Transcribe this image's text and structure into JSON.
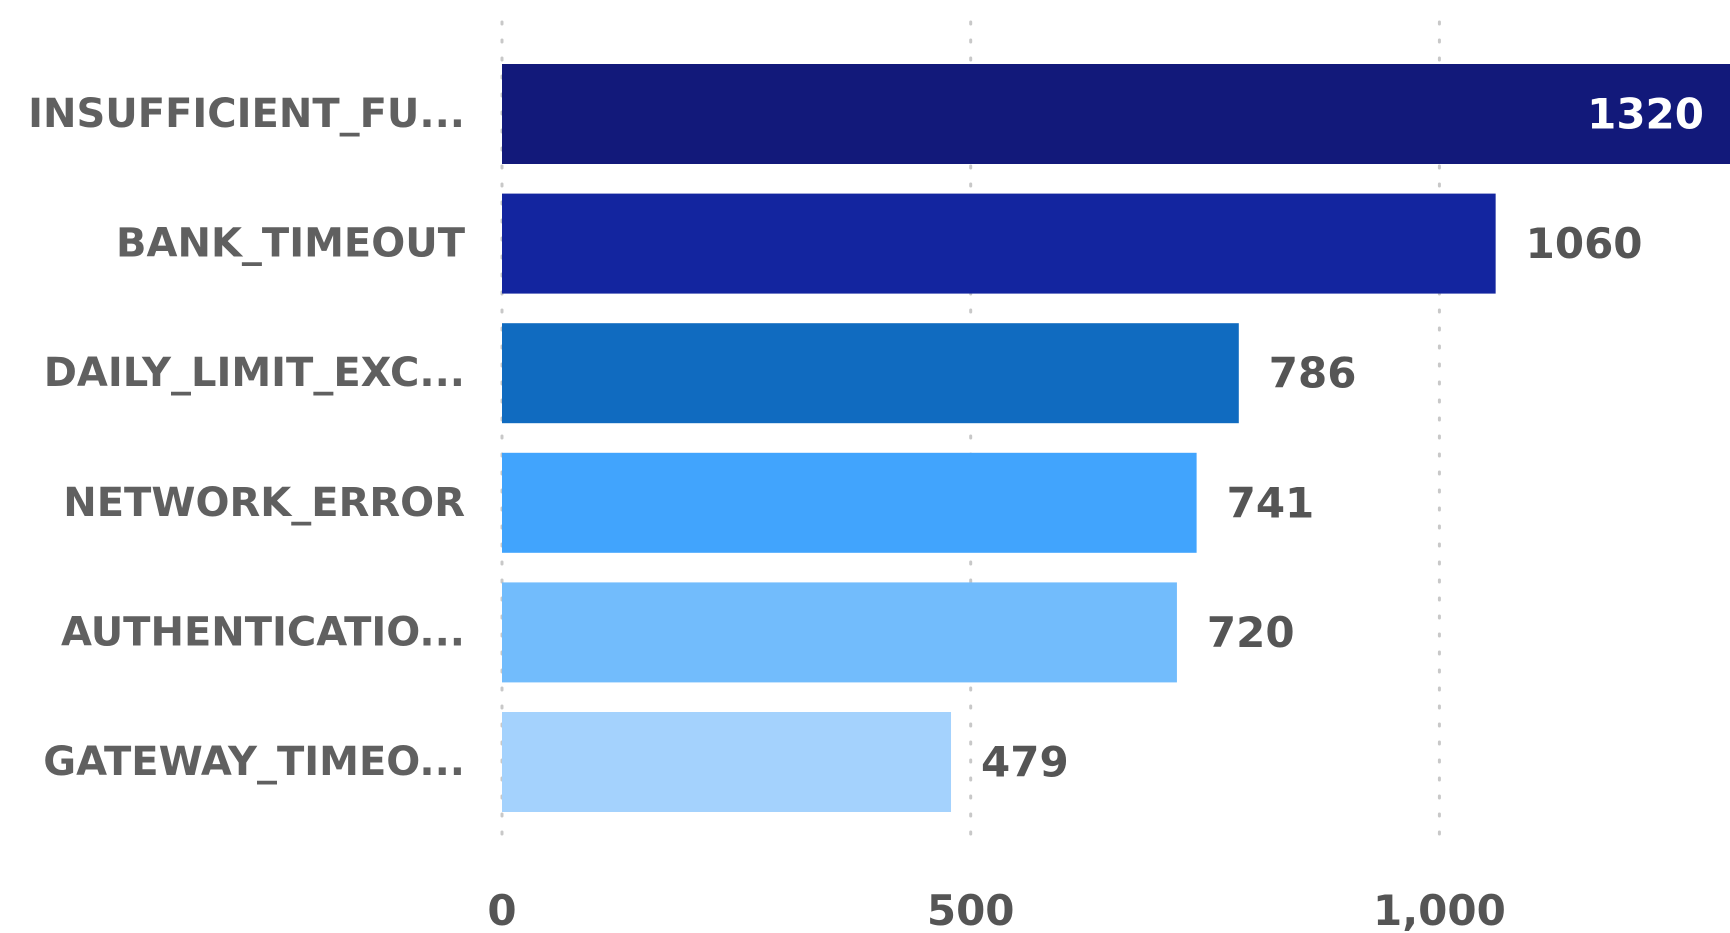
{
  "chart_data": {
    "type": "bar",
    "orientation": "horizontal",
    "categories": [
      "INSUFFICIENT_FU...",
      "BANK_TIMEOUT",
      "DAILY_LIMIT_EXC...",
      "NETWORK_ERROR",
      "AUTHENTICATIO...",
      "GATEWAY_TIMEO..."
    ],
    "values": [
      1320,
      1060,
      786,
      741,
      720,
      479
    ],
    "value_labels": [
      "1320",
      "1060",
      "786",
      "741",
      "720",
      "479"
    ],
    "bar_colors": [
      "#12197a",
      "#13259f",
      "#106bc0",
      "#41a4fd",
      "#72bcfc",
      "#a4d2fd"
    ],
    "xlim": [
      0,
      1310
    ],
    "x_ticks": [
      0,
      500,
      1000
    ],
    "x_tick_labels": [
      "0",
      "500",
      "1,000"
    ],
    "grid": true,
    "legend": "none"
  }
}
